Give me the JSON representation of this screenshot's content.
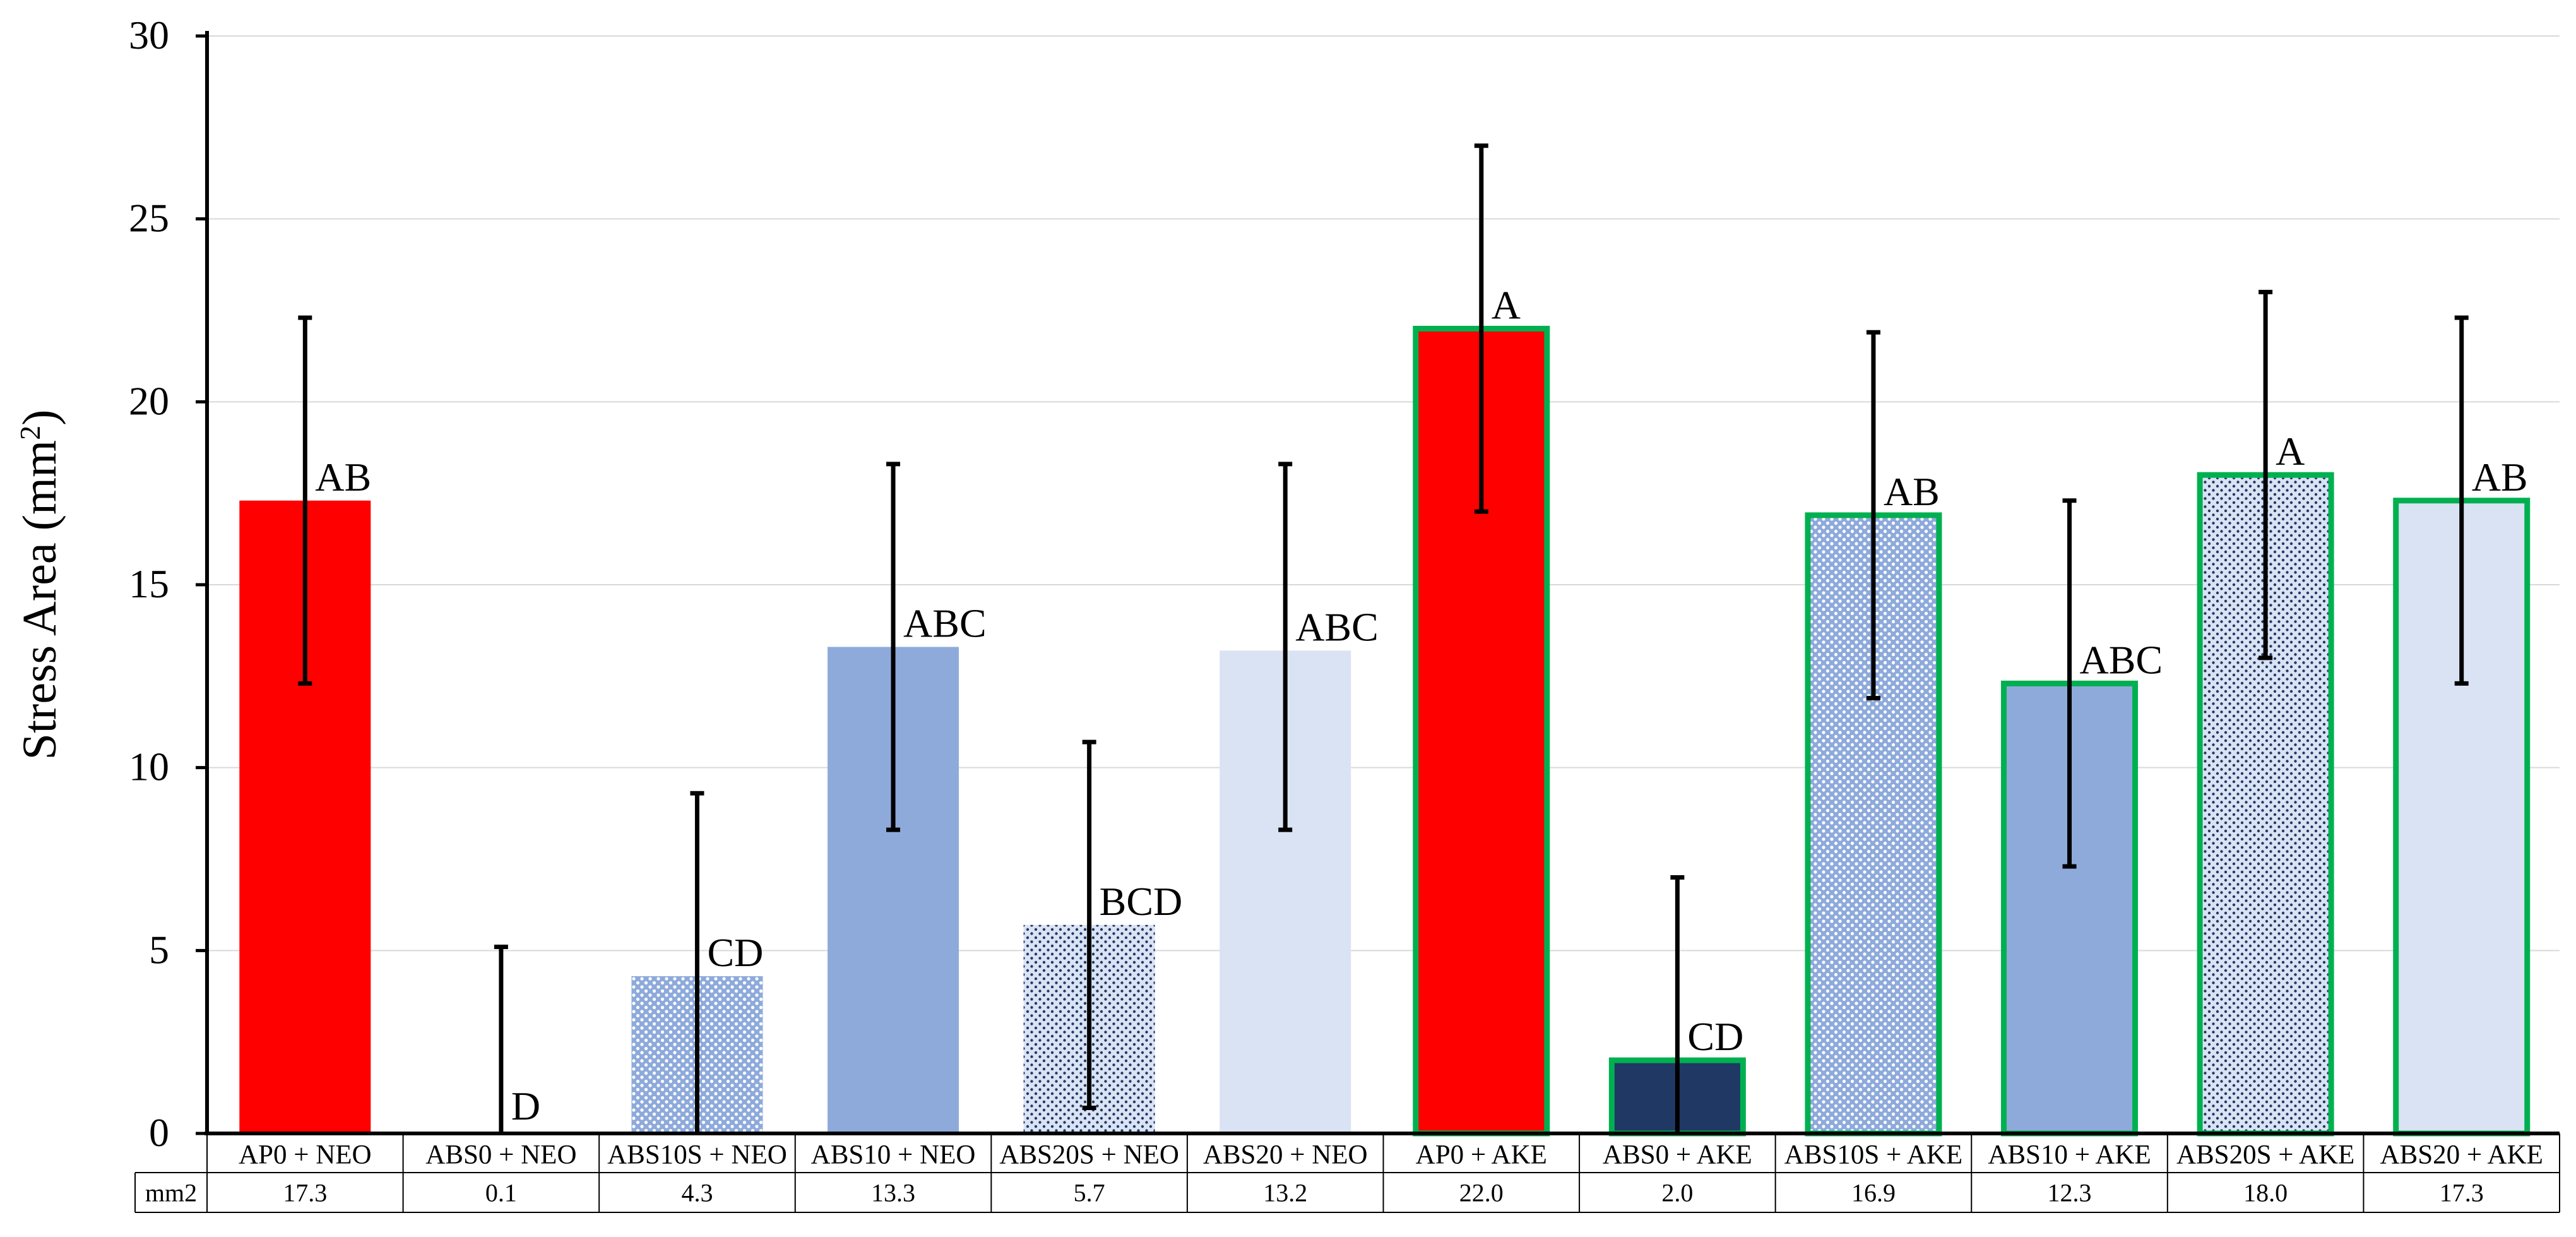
{
  "chart_data": {
    "type": "bar",
    "title": "",
    "xlabel": "",
    "ylabel_main": "Stress Area (mm",
    "ylabel_sup": "2",
    "ylabel_close": ")",
    "ylim": [
      0,
      30
    ],
    "yticks": [
      0,
      5,
      10,
      15,
      20,
      25,
      30
    ],
    "grid": true,
    "categories": [
      "AP0 + NEO",
      "ABS0 + NEO",
      "ABS10S + NEO",
      "ABS10 + NEO",
      "ABS20S + NEO",
      "ABS20 + NEO",
      "AP0 + AKE",
      "ABS0 + AKE",
      "ABS10S + AKE",
      "ABS10 + AKE",
      "ABS20S + AKE",
      "ABS20 + AKE"
    ],
    "values": [
      17.3,
      0.1,
      4.3,
      13.3,
      5.7,
      13.2,
      22.0,
      2.0,
      16.9,
      12.3,
      18.0,
      17.3
    ],
    "error_low": [
      12.3,
      0.0,
      0.0,
      8.3,
      0.7,
      8.3,
      17.0,
      0.0,
      11.9,
      7.3,
      13.0,
      12.3
    ],
    "error_high": [
      22.3,
      5.1,
      9.3,
      18.3,
      10.7,
      18.3,
      27.0,
      7.0,
      21.9,
      17.3,
      23.0,
      22.3
    ],
    "significance_letters": [
      "AB",
      "D",
      "CD",
      "ABC",
      "BCD",
      "ABC",
      "A",
      "CD",
      "AB",
      "ABC",
      "A",
      "AB"
    ],
    "fill_colors": [
      "#ff0000",
      "#ffffff",
      "#8eaadb",
      "#8eaadb",
      "#dae3f3",
      "#dae3f3",
      "#ff0000",
      "#203864",
      "#8eaadb",
      "#8eaadb",
      "#dae3f3",
      "#dae3f3"
    ],
    "patterned": [
      false,
      false,
      true,
      false,
      true,
      false,
      false,
      false,
      true,
      false,
      true,
      false
    ],
    "outlined": [
      false,
      false,
      false,
      false,
      false,
      false,
      true,
      true,
      true,
      true,
      true,
      true
    ],
    "outline_color": "#00b050",
    "data_table": {
      "row_header": "mm2",
      "values": [
        "17.3",
        "0.1",
        "4.3",
        "13.3",
        "5.7",
        "13.2",
        "22.0",
        "2.0",
        "16.9",
        "12.3",
        "18.0",
        "17.3"
      ]
    }
  }
}
